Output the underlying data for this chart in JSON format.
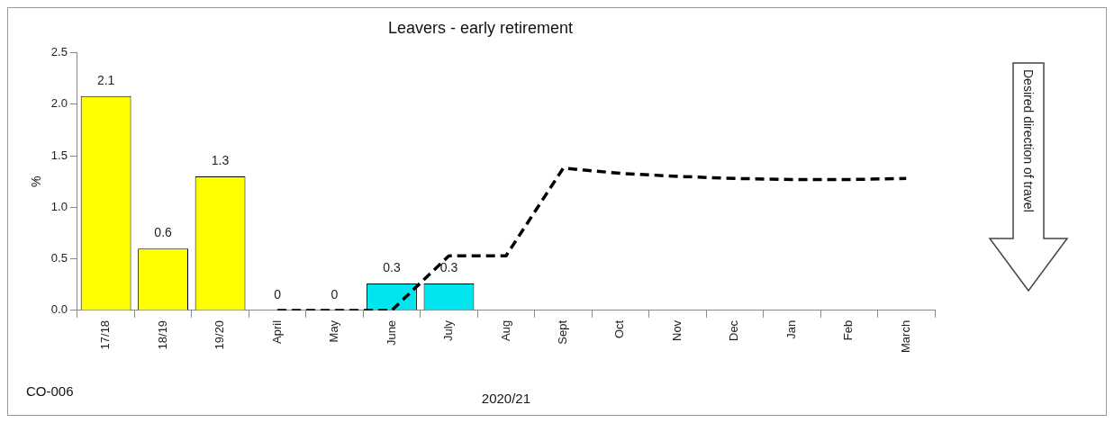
{
  "chart_data": {
    "type": "bar",
    "title": "Leavers - early retirement",
    "xlabel": "2020/21",
    "ylabel": "%",
    "categories": [
      "17/18",
      "18/19",
      "19/20",
      "April",
      "May",
      "June",
      "July",
      "Aug",
      "Sept",
      "Oct",
      "Nov",
      "Dec",
      "Jan",
      "Feb",
      "March"
    ],
    "series": [
      {
        "colors": [
          "#ffff00",
          "#ffff00",
          "#ffff00",
          "#00e5ee",
          "#00e5ee",
          "#00e5ee",
          "#00e5ee",
          null,
          null,
          null,
          null,
          null,
          null,
          null,
          null
        ],
        "values": [
          2.08,
          0.6,
          1.3,
          0,
          0,
          0.26,
          0.26,
          null,
          null,
          null,
          null,
          null,
          null,
          null,
          null
        ],
        "value_labels": [
          "2.1",
          "0.6",
          "1.3",
          "0",
          "0",
          "0.3",
          "0.3",
          null,
          null,
          null,
          null,
          null,
          null,
          null,
          null
        ]
      },
      {
        "type": "line",
        "color": "#000000",
        "line_style": "dashed",
        "marker": "none",
        "values": [
          null,
          null,
          null,
          0,
          0,
          0,
          0.53,
          0.53,
          1.38,
          1.33,
          1.3,
          1.28,
          1.27,
          1.27,
          1.28
        ]
      }
    ],
    "ylim": [
      0,
      2.5
    ],
    "yticks": [
      {
        "value": 0,
        "label": "0.0"
      },
      {
        "value": 0.5,
        "label": "0.5"
      },
      {
        "value": 1,
        "label": "1.0"
      },
      {
        "value": 1.5,
        "label": "1.5"
      },
      {
        "value": 2,
        "label": "2.0"
      },
      {
        "value": 2.5,
        "label": "2.5"
      }
    ],
    "grid": false,
    "legend": false,
    "annotations": [
      "CO-006",
      "Desired direction of travel"
    ]
  }
}
